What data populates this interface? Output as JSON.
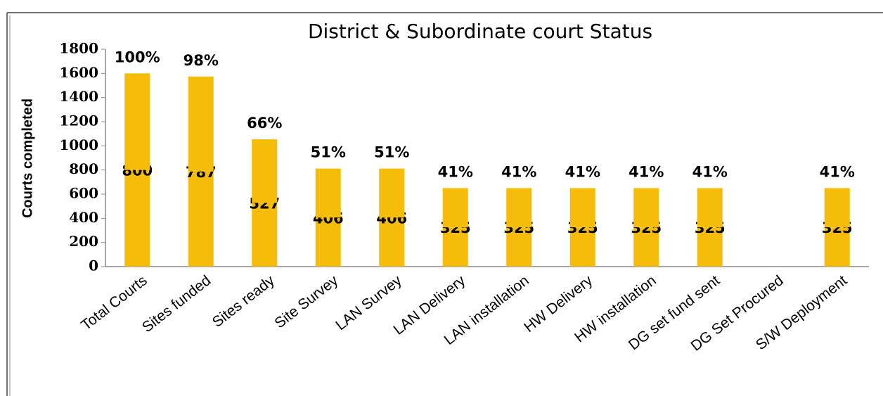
{
  "chart_data": {
    "type": "stacked_bar",
    "title": "District & Subordinate  court Status",
    "y_label": "Courts completed",
    "categories": [
      "Total Courts",
      "Sites funded",
      "Sites ready",
      "Site Survey",
      "LAN Survey",
      "LAN Delivery",
      "LAN installation",
      "HW Delivery",
      "HW installation",
      "DG set fund sent",
      "DG Set Procured",
      "S/W Deployment"
    ],
    "series": [
      {
        "color": "#f5bd0a",
        "values": [
          800,
          787,
          527,
          406,
          406,
          325,
          325,
          325,
          325,
          325,
          null,
          325
        ]
      },
      {
        "color": "#f5bd0a",
        "values": [
          800,
          787,
          527,
          406,
          406,
          325,
          325,
          325,
          325,
          325,
          null,
          325
        ]
      }
    ],
    "annotations": [
      "100%",
      "98%",
      "66%",
      "51%",
      "51%",
      "41%",
      "41%",
      "41%",
      "41%",
      "41%",
      null,
      "41%"
    ],
    "ylim": [
      0,
      1800
    ],
    "yticks": [
      0,
      200,
      400,
      600,
      800,
      1000,
      1200,
      1400,
      1600,
      1800
    ],
    "grid": false
  }
}
